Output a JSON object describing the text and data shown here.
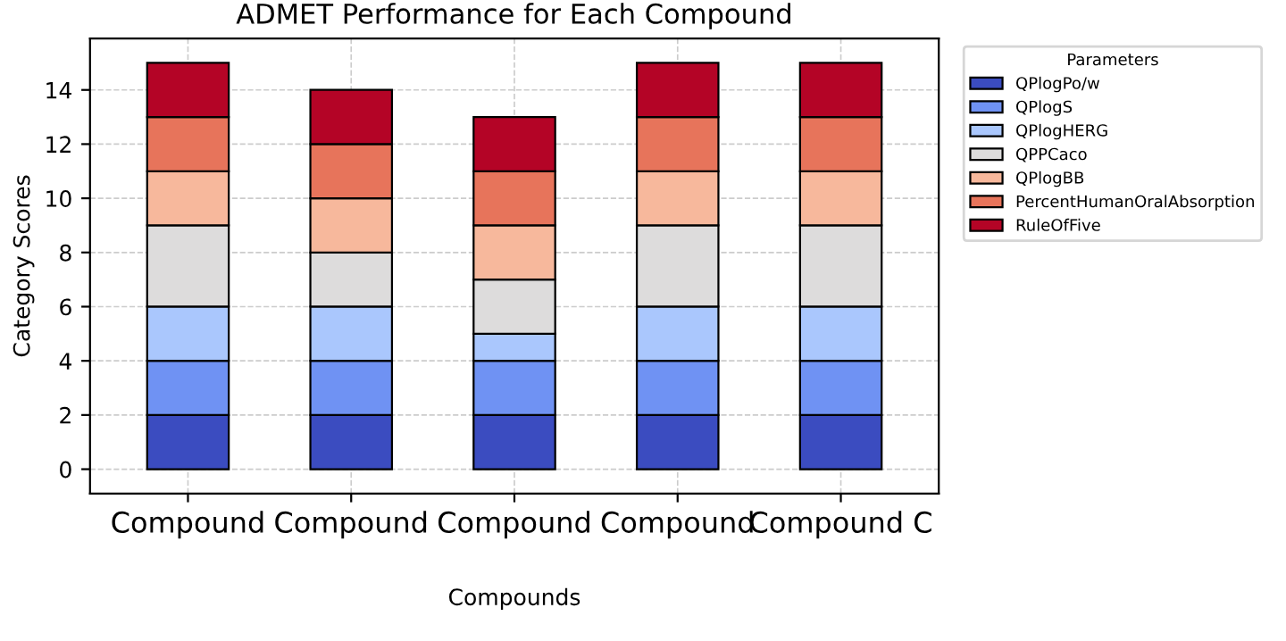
{
  "chart_data": {
    "type": "bar",
    "stacked": true,
    "title": "ADMET Performance for Each Compound",
    "xlabel": "Compounds",
    "ylabel": "Category Scores",
    "legend_title": "Parameters",
    "legend": "top right",
    "grid": true,
    "categories": [
      "Compound",
      "Compound",
      "Compound",
      "Compound",
      "Compound C"
    ],
    "ylim": [
      -0.9,
      15.9
    ],
    "yticks": [
      0,
      2,
      4,
      6,
      8,
      10,
      12,
      14
    ],
    "series": [
      {
        "name": "QPlogPo/w",
        "color": "#3b4cc0",
        "values": [
          2,
          2,
          2,
          2,
          2
        ]
      },
      {
        "name": "QPlogS",
        "color": "#6f92f3",
        "values": [
          2,
          2,
          2,
          2,
          2
        ]
      },
      {
        "name": "QPlogHERG",
        "color": "#aac7fd",
        "values": [
          2,
          2,
          1,
          2,
          2
        ]
      },
      {
        "name": "QPPCaco",
        "color": "#dddcdc",
        "values": [
          3,
          2,
          2,
          3,
          3
        ]
      },
      {
        "name": "QPlogBB",
        "color": "#f7b89c",
        "values": [
          2,
          2,
          2,
          2,
          2
        ]
      },
      {
        "name": "PercentHumanOralAbsorption",
        "color": "#e7745b",
        "values": [
          2,
          2,
          2,
          2,
          2
        ]
      },
      {
        "name": "RuleOfFive",
        "color": "#b40426",
        "values": [
          2,
          2,
          2,
          2,
          2
        ]
      }
    ]
  }
}
